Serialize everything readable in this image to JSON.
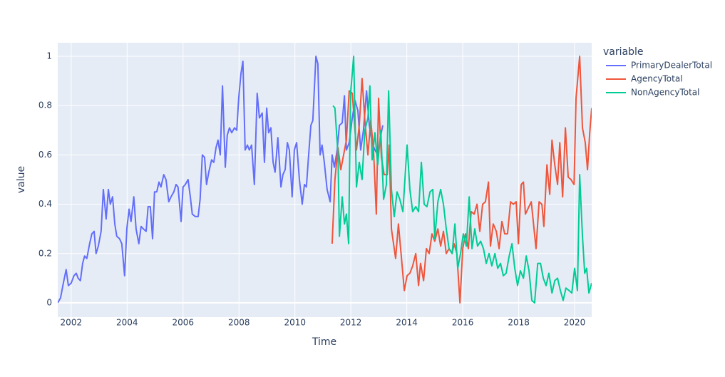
{
  "chart_data": {
    "type": "line",
    "xlabel": "Time",
    "ylabel": "value",
    "legend_title": "variable",
    "grid": true,
    "xlim": [
      2001.52,
      2020.61
    ],
    "xticks": [
      2002,
      2004,
      2006,
      2008,
      2010,
      2012,
      2014,
      2016,
      2018,
      2020
    ],
    "ylim": [
      -0.058,
      1.055
    ],
    "yticks": [
      0,
      0.2,
      0.4,
      0.6,
      0.8,
      1
    ],
    "series": [
      {
        "name": "PrimaryDealerTotal",
        "color": "#636efa",
        "x": [
          2001.52,
          2001.62,
          2001.72,
          2001.82,
          2001.9,
          2002.0,
          2002.1,
          2002.18,
          2002.25,
          2002.33,
          2002.41,
          2002.48,
          2002.56,
          2002.66,
          2002.74,
          2002.82,
          2002.89,
          2002.97,
          2003.07,
          2003.15,
          2003.25,
          2003.33,
          2003.4,
          2003.48,
          2003.56,
          2003.63,
          2003.73,
          2003.81,
          2003.91,
          2003.99,
          2004.07,
          2004.14,
          2004.24,
          2004.32,
          2004.42,
          2004.5,
          2004.58,
          2004.68,
          2004.75,
          2004.83,
          2004.91,
          2004.98,
          2005.06,
          2005.14,
          2005.21,
          2005.31,
          2005.39,
          2005.49,
          2005.57,
          2005.67,
          2005.75,
          2005.82,
          2005.93,
          2006.0,
          2006.08,
          2006.18,
          2006.26,
          2006.33,
          2006.44,
          2006.54,
          2006.61,
          2006.69,
          2006.77,
          2006.84,
          2006.92,
          2007.02,
          2007.1,
          2007.18,
          2007.25,
          2007.33,
          2007.41,
          2007.51,
          2007.58,
          2007.66,
          2007.74,
          2007.84,
          2007.92,
          2007.99,
          2008.07,
          2008.14,
          2008.22,
          2008.3,
          2008.37,
          2008.45,
          2008.55,
          2008.65,
          2008.73,
          2008.83,
          2008.91,
          2008.99,
          2009.06,
          2009.14,
          2009.22,
          2009.29,
          2009.39,
          2009.5,
          2009.57,
          2009.65,
          2009.73,
          2009.8,
          2009.9,
          2009.98,
          2010.06,
          2010.16,
          2010.26,
          2010.34,
          2010.41,
          2010.49,
          2010.57,
          2010.64,
          2010.75,
          2010.82,
          2010.9,
          2010.97,
          2011.05,
          2011.15,
          2011.26,
          2011.33,
          2011.41,
          2011.51,
          2011.59,
          2011.69,
          2011.77,
          2011.84,
          2011.94,
          2012.05,
          2012.15,
          2012.25,
          2012.35,
          2012.45,
          2012.56,
          2012.66,
          2012.76,
          2012.86,
          2012.96,
          2013.07,
          2013.14
        ],
        "values": [
          0.0,
          0.02,
          0.08,
          0.135,
          0.07,
          0.08,
          0.11,
          0.12,
          0.1,
          0.09,
          0.16,
          0.19,
          0.18,
          0.24,
          0.28,
          0.29,
          0.2,
          0.23,
          0.29,
          0.46,
          0.34,
          0.46,
          0.4,
          0.43,
          0.32,
          0.27,
          0.26,
          0.24,
          0.11,
          0.3,
          0.38,
          0.33,
          0.43,
          0.3,
          0.24,
          0.31,
          0.3,
          0.29,
          0.39,
          0.39,
          0.26,
          0.45,
          0.45,
          0.49,
          0.47,
          0.52,
          0.5,
          0.41,
          0.43,
          0.45,
          0.48,
          0.47,
          0.33,
          0.47,
          0.48,
          0.5,
          0.43,
          0.36,
          0.35,
          0.35,
          0.42,
          0.6,
          0.59,
          0.48,
          0.53,
          0.58,
          0.57,
          0.63,
          0.66,
          0.6,
          0.88,
          0.55,
          0.68,
          0.71,
          0.69,
          0.71,
          0.7,
          0.83,
          0.93,
          0.98,
          0.62,
          0.64,
          0.62,
          0.64,
          0.48,
          0.85,
          0.75,
          0.77,
          0.57,
          0.79,
          0.69,
          0.71,
          0.57,
          0.53,
          0.67,
          0.47,
          0.52,
          0.54,
          0.65,
          0.62,
          0.43,
          0.62,
          0.65,
          0.5,
          0.4,
          0.48,
          0.47,
          0.6,
          0.72,
          0.74,
          1.0,
          0.97,
          0.6,
          0.64,
          0.57,
          0.46,
          0.41,
          0.6,
          0.55,
          0.62,
          0.72,
          0.73,
          0.84,
          0.62,
          0.65,
          0.75,
          0.82,
          0.78,
          0.62,
          0.7,
          0.86,
          0.72,
          0.65,
          0.62,
          0.6,
          0.68,
          0.72
        ]
      },
      {
        "name": "AgencyTotal",
        "color": "#ef553b",
        "x": [
          2011.33,
          2011.43,
          2011.54,
          2011.64,
          2011.74,
          2011.84,
          2011.94,
          2012.05,
          2012.2,
          2012.3,
          2012.4,
          2012.5,
          2012.61,
          2012.71,
          2012.81,
          2012.91,
          2012.99,
          2013.09,
          2013.19,
          2013.3,
          2013.37,
          2013.45,
          2013.6,
          2013.7,
          2013.81,
          2013.91,
          2014.01,
          2014.11,
          2014.21,
          2014.32,
          2014.42,
          2014.49,
          2014.6,
          2014.7,
          2014.8,
          2014.9,
          2015.0,
          2015.11,
          2015.21,
          2015.31,
          2015.41,
          2015.51,
          2015.62,
          2015.69,
          2015.79,
          2015.9,
          2016.0,
          2016.1,
          2016.2,
          2016.3,
          2016.41,
          2016.51,
          2016.61,
          2016.71,
          2016.81,
          2016.92,
          2016.99,
          2017.09,
          2017.2,
          2017.3,
          2017.4,
          2017.5,
          2017.6,
          2017.71,
          2017.81,
          2017.91,
          2017.99,
          2018.09,
          2018.17,
          2018.24,
          2018.45,
          2018.62,
          2018.73,
          2018.83,
          2018.9,
          2019.01,
          2019.11,
          2019.19,
          2019.29,
          2019.39,
          2019.47,
          2019.57,
          2019.67,
          2019.77,
          2019.87,
          2019.98,
          2020.05,
          2020.18,
          2020.28,
          2020.38,
          2020.46,
          2020.54,
          2020.61
        ],
        "values": [
          0.24,
          0.5,
          0.63,
          0.54,
          0.6,
          0.66,
          0.86,
          0.85,
          0.62,
          0.72,
          0.91,
          0.74,
          0.6,
          0.74,
          0.62,
          0.36,
          0.83,
          0.59,
          0.52,
          0.52,
          0.64,
          0.3,
          0.18,
          0.32,
          0.18,
          0.05,
          0.11,
          0.12,
          0.15,
          0.2,
          0.07,
          0.16,
          0.09,
          0.22,
          0.2,
          0.28,
          0.25,
          0.3,
          0.23,
          0.29,
          0.2,
          0.22,
          0.2,
          0.24,
          0.2,
          0.0,
          0.22,
          0.28,
          0.22,
          0.37,
          0.36,
          0.4,
          0.29,
          0.4,
          0.41,
          0.49,
          0.23,
          0.32,
          0.29,
          0.22,
          0.33,
          0.28,
          0.28,
          0.41,
          0.4,
          0.41,
          0.24,
          0.48,
          0.49,
          0.36,
          0.41,
          0.22,
          0.41,
          0.4,
          0.31,
          0.56,
          0.44,
          0.66,
          0.56,
          0.48,
          0.65,
          0.43,
          0.71,
          0.51,
          0.5,
          0.48,
          0.83,
          1.0,
          0.71,
          0.65,
          0.54,
          0.69,
          0.79
        ]
      },
      {
        "name": "NonAgencyTotal",
        "color": "#00cc96",
        "x": [
          2011.36,
          2011.43,
          2011.54,
          2011.59,
          2011.69,
          2011.77,
          2011.84,
          2011.92,
          2011.99,
          2012.1,
          2012.2,
          2012.3,
          2012.4,
          2012.5,
          2012.61,
          2012.68,
          2012.76,
          2012.86,
          2012.96,
          2013.07,
          2013.17,
          2013.27,
          2013.35,
          2013.45,
          2013.55,
          2013.65,
          2013.75,
          2013.86,
          2014.01,
          2014.11,
          2014.21,
          2014.32,
          2014.42,
          2014.52,
          2014.62,
          2014.72,
          2014.83,
          2014.93,
          2015.0,
          2015.11,
          2015.21,
          2015.31,
          2015.41,
          2015.51,
          2015.62,
          2015.72,
          2015.82,
          2015.92,
          2016.02,
          2016.13,
          2016.23,
          2016.33,
          2016.43,
          2016.53,
          2016.64,
          2016.74,
          2016.84,
          2016.94,
          2017.04,
          2017.15,
          2017.25,
          2017.35,
          2017.45,
          2017.55,
          2017.66,
          2017.76,
          2017.86,
          2017.96,
          2018.06,
          2018.17,
          2018.27,
          2018.37,
          2018.47,
          2018.57,
          2018.68,
          2018.78,
          2018.88,
          2018.98,
          2019.08,
          2019.19,
          2019.29,
          2019.39,
          2019.49,
          2019.59,
          2019.69,
          2019.8,
          2019.9,
          2020.0,
          2020.1,
          2020.18,
          2020.28,
          2020.36,
          2020.43,
          2020.51,
          2020.61
        ],
        "values": [
          0.8,
          0.79,
          0.6,
          0.27,
          0.43,
          0.32,
          0.36,
          0.24,
          0.85,
          1.0,
          0.47,
          0.57,
          0.5,
          0.7,
          0.75,
          0.88,
          0.58,
          0.69,
          0.56,
          0.7,
          0.42,
          0.48,
          0.86,
          0.46,
          0.35,
          0.45,
          0.42,
          0.37,
          0.64,
          0.46,
          0.37,
          0.39,
          0.37,
          0.57,
          0.4,
          0.39,
          0.45,
          0.46,
          0.26,
          0.41,
          0.46,
          0.4,
          0.3,
          0.22,
          0.2,
          0.32,
          0.14,
          0.2,
          0.28,
          0.23,
          0.43,
          0.22,
          0.3,
          0.23,
          0.25,
          0.22,
          0.16,
          0.2,
          0.15,
          0.2,
          0.14,
          0.16,
          0.11,
          0.12,
          0.19,
          0.24,
          0.14,
          0.07,
          0.13,
          0.1,
          0.19,
          0.13,
          0.01,
          0.0,
          0.16,
          0.16,
          0.1,
          0.07,
          0.12,
          0.04,
          0.09,
          0.1,
          0.05,
          0.01,
          0.06,
          0.05,
          0.04,
          0.14,
          0.05,
          0.52,
          0.27,
          0.12,
          0.14,
          0.04,
          0.08
        ]
      }
    ]
  }
}
